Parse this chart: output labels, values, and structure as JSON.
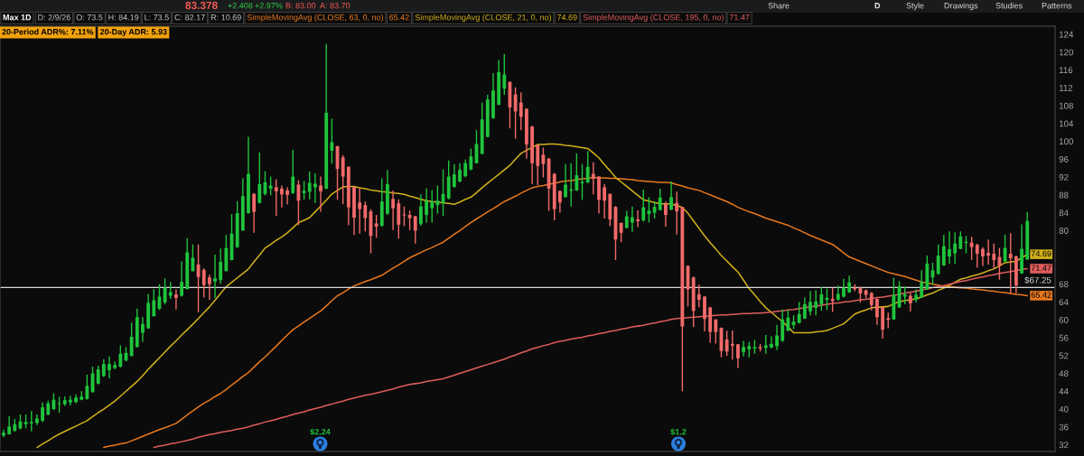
{
  "chart_data": {
    "type": "candlestick",
    "title": "Max 1D",
    "categories": [
      null,
      null,
      null,
      null,
      null,
      null,
      null,
      null,
      null,
      null,
      null,
      null,
      null,
      null,
      null,
      null,
      null,
      null,
      null,
      null,
      null,
      null,
      null,
      null,
      null,
      null,
      null,
      null,
      null,
      null,
      null,
      null,
      null,
      null,
      null,
      null,
      null,
      null,
      null,
      null,
      null,
      null,
      null,
      null,
      null,
      null,
      null,
      null,
      null,
      null,
      null,
      null,
      null,
      null,
      null,
      null,
      null,
      null,
      null,
      null,
      null,
      null,
      null,
      null,
      null,
      null,
      null,
      null,
      null,
      null,
      null,
      null,
      null,
      null,
      null,
      null,
      null,
      null,
      null,
      null,
      null,
      null,
      null,
      null,
      null,
      null,
      null,
      null,
      null,
      null,
      null,
      null,
      null,
      null,
      null,
      null,
      null,
      null,
      null,
      null,
      null,
      null,
      null,
      null,
      null,
      null,
      null,
      null,
      null,
      null,
      null,
      null,
      null,
      null,
      null,
      null,
      null,
      null,
      null,
      null,
      null,
      null,
      null,
      null,
      null,
      null,
      null,
      null,
      null,
      null,
      null,
      null,
      null,
      null,
      null,
      null,
      null,
      null,
      null,
      null,
      null,
      null,
      null,
      null,
      null,
      null,
      null,
      null,
      null,
      null,
      null,
      null,
      null,
      null,
      null,
      null,
      null,
      null,
      null,
      null,
      null,
      null,
      null,
      null,
      null,
      null,
      null,
      null,
      null,
      null,
      null,
      null,
      null,
      null,
      null,
      null,
      null,
      null,
      null,
      null,
      null,
      null,
      null,
      null,
      null
    ],
    "ohlc": [
      [
        34.1,
        35.4,
        33.7,
        34.7
      ],
      [
        34.4,
        38.4,
        34.3,
        36.1
      ],
      [
        35.1,
        37.8,
        35.0,
        36.6
      ],
      [
        35.7,
        38.8,
        35.4,
        37.2
      ],
      [
        36.6,
        38.8,
        35.7,
        37.1
      ],
      [
        36.8,
        39.6,
        35.0,
        37.1
      ],
      [
        36.9,
        38.8,
        36.4,
        37.9
      ],
      [
        37.4,
        41.5,
        37.1,
        40.4
      ],
      [
        38.8,
        41.9,
        38.6,
        41.3
      ],
      [
        40.0,
        43.5,
        39.8,
        42.1
      ],
      [
        41.1,
        42.8,
        39.2,
        41.3
      ],
      [
        41.1,
        42.8,
        40.7,
        42.0
      ],
      [
        41.5,
        43.0,
        40.8,
        42.1
      ],
      [
        41.6,
        43.3,
        41.3,
        42.6
      ],
      [
        42.1,
        44.0,
        42.0,
        42.8
      ],
      [
        42.3,
        47.7,
        42.1,
        45.2
      ],
      [
        43.8,
        49.5,
        43.7,
        48.0
      ],
      [
        45.7,
        49.7,
        45.5,
        48.9
      ],
      [
        47.4,
        51.2,
        47.2,
        50.1
      ],
      [
        48.7,
        51.8,
        46.9,
        50.1
      ],
      [
        49.2,
        50.7,
        48.9,
        49.9
      ],
      [
        49.5,
        54.3,
        49.3,
        52.4
      ],
      [
        50.9,
        53.9,
        50.7,
        52.6
      ],
      [
        51.9,
        59.4,
        51.8,
        56.2
      ],
      [
        53.9,
        62.5,
        53.8,
        60.6
      ],
      [
        57.1,
        60.6,
        55.1,
        59.1
      ],
      [
        58.1,
        65.8,
        58.0,
        63.8
      ],
      [
        60.8,
        66.9,
        60.8,
        64.4
      ],
      [
        62.5,
        68.0,
        62.2,
        65.2
      ],
      [
        63.9,
        69.3,
        63.5,
        67.2
      ],
      [
        65.4,
        68.5,
        64.7,
        66.2
      ],
      [
        65.7,
        66.8,
        62.3,
        64.9
      ],
      [
        65.4,
        73.1,
        65.2,
        68.5
      ],
      [
        66.9,
        78.3,
        66.8,
        75.1
      ],
      [
        70.9,
        76.9,
        70.9,
        73.9
      ],
      [
        72.4,
        76.9,
        61.7,
        69.6
      ],
      [
        71.2,
        71.5,
        65.0,
        67.8
      ],
      [
        69.5,
        70.1,
        64.5,
        68.0
      ],
      [
        68.6,
        74.6,
        64.9,
        69.3
      ],
      [
        68.9,
        76.0,
        68.1,
        73.0
      ],
      [
        70.9,
        79.0,
        70.9,
        76.1
      ],
      [
        73.4,
        83.7,
        73.3,
        79.3
      ],
      [
        76.3,
        86.6,
        76.1,
        83.9
      ],
      [
        80.0,
        91.7,
        80.0,
        87.7
      ],
      [
        83.9,
        101.0,
        83.8,
        92.7
      ],
      [
        88.2,
        88.4,
        79.5,
        84.2
      ],
      [
        86.2,
        97.5,
        86.1,
        90.4
      ],
      [
        88.2,
        93.3,
        87.9,
        90.8
      ],
      [
        89.4,
        92.1,
        87.9,
        90.1
      ],
      [
        89.7,
        91.5,
        83.3,
        88.8
      ],
      [
        89.4,
        90.1,
        85.2,
        88.1
      ],
      [
        89.0,
        89.7,
        85.9,
        88.0
      ],
      [
        88.4,
        98.1,
        88.2,
        92.1
      ],
      [
        90.3,
        91.3,
        81.2,
        86.7
      ],
      [
        88.4,
        91.1,
        86.9,
        88.9
      ],
      [
        88.7,
        93.2,
        87.0,
        90.7
      ],
      [
        89.7,
        92.8,
        86.2,
        90.5
      ],
      [
        90.1,
        92.1,
        84.2,
        88.8
      ],
      [
        89.4,
        121.8,
        89.3,
        106.4
      ],
      [
        97.9,
        105.1,
        95.0,
        99.8
      ],
      [
        98.9,
        99.0,
        86.9,
        93.8
      ],
      [
        96.4,
        96.9,
        85.9,
        92.1
      ],
      [
        94.3,
        94.4,
        81.2,
        85.2
      ],
      [
        89.8,
        89.9,
        79.0,
        82.9
      ],
      [
        86.3,
        89.6,
        79.3,
        84.8
      ],
      [
        85.7,
        86.5,
        79.8,
        82.8
      ],
      [
        84.3,
        84.8,
        74.9,
        78.8
      ],
      [
        81.6,
        83.5,
        78.4,
        80.9
      ],
      [
        81.1,
        91.7,
        80.9,
        86.5
      ],
      [
        83.8,
        93.6,
        83.5,
        90.4
      ],
      [
        87.1,
        89.0,
        80.1,
        85.0
      ],
      [
        86.1,
        87.0,
        78.2,
        81.3
      ],
      [
        83.6,
        85.4,
        81.0,
        83.4
      ],
      [
        83.5,
        84.5,
        80.1,
        82.8
      ],
      [
        83.2,
        83.3,
        77.1,
        80.0
      ],
      [
        81.5,
        88.1,
        81.1,
        85.4
      ],
      [
        83.5,
        89.5,
        81.8,
        86.7
      ],
      [
        85.0,
        89.1,
        81.8,
        86.5
      ],
      [
        85.7,
        90.1,
        83.8,
        86.7
      ],
      [
        86.2,
        93.7,
        83.3,
        88.2
      ],
      [
        87.2,
        95.7,
        87.0,
        92.1
      ],
      [
        89.8,
        94.9,
        89.6,
        92.6
      ],
      [
        91.0,
        95.1,
        90.8,
        93.6
      ],
      [
        92.2,
        95.9,
        91.9,
        95.1
      ],
      [
        93.7,
        98.4,
        93.5,
        96.6
      ],
      [
        95.1,
        102.5,
        95.1,
        99.4
      ],
      [
        97.2,
        108.7,
        97.1,
        104.9
      ],
      [
        101.0,
        110.4,
        100.9,
        109.4
      ],
      [
        105.2,
        115.3,
        105.0,
        111.4
      ],
      [
        108.2,
        118.2,
        108.1,
        115.5
      ],
      [
        111.8,
        119.6,
        110.4,
        115.0
      ],
      [
        113.3,
        113.4,
        102.9,
        107.6
      ],
      [
        110.5,
        112.1,
        100.6,
        106.7
      ],
      [
        108.7,
        111.0,
        102.5,
        105.5
      ],
      [
        107.3,
        107.4,
        96.1,
        99.3
      ],
      [
        103.3,
        103.5,
        90.4,
        95.1
      ],
      [
        99.2,
        99.3,
        90.2,
        94.5
      ],
      [
        97.0,
        98.6,
        91.9,
        94.9
      ],
      [
        96.1,
        96.3,
        84.4,
        89.4
      ],
      [
        92.7,
        92.9,
        82.3,
        84.8
      ],
      [
        88.9,
        89.0,
        84.0,
        86.3
      ],
      [
        87.5,
        94.9,
        87.4,
        90.3
      ],
      [
        88.9,
        95.1,
        85.4,
        89.2
      ],
      [
        89.0,
        97.3,
        88.9,
        92.4
      ],
      [
        90.6,
        94.9,
        86.9,
        90.9
      ],
      [
        90.8,
        97.8,
        90.6,
        94.3
      ],
      [
        92.7,
        95.3,
        88.1,
        91.6
      ],
      [
        92.1,
        92.2,
        83.8,
        86.9
      ],
      [
        89.7,
        90.4,
        82.7,
        86.7
      ],
      [
        88.2,
        88.3,
        81.0,
        82.5
      ],
      [
        85.3,
        85.5,
        73.4,
        78.0
      ],
      [
        81.7,
        81.8,
        77.4,
        79.5
      ],
      [
        80.6,
        84.4,
        80.5,
        83.2
      ],
      [
        81.8,
        85.4,
        79.7,
        83.0
      ],
      [
        82.5,
        84.5,
        80.8,
        82.1
      ],
      [
        82.3,
        89.2,
        82.0,
        85.2
      ],
      [
        83.7,
        87.5,
        81.8,
        84.5
      ],
      [
        84.0,
        86.5,
        82.7,
        85.3
      ],
      [
        84.6,
        89.4,
        84.5,
        87.4
      ],
      [
        86.0,
        86.5,
        80.9,
        83.5
      ],
      [
        84.7,
        91.0,
        84.5,
        87.5
      ],
      [
        86.2,
        88.7,
        79.1,
        84.3
      ],
      [
        85.3,
        85.3,
        44.0,
        58.5
      ],
      [
        72.1,
        72.2,
        63.0,
        66.8
      ],
      [
        69.5,
        69.7,
        58.4,
        62.0
      ],
      [
        65.7,
        67.9,
        62.8,
        64.5
      ],
      [
        65.2,
        65.3,
        57.4,
        60.2
      ],
      [
        62.8,
        62.8,
        54.9,
        57.3
      ],
      [
        60.1,
        60.1,
        54.7,
        57.3
      ],
      [
        58.2,
        58.3,
        51.6,
        53.0
      ],
      [
        55.6,
        57.6,
        51.9,
        52.9
      ],
      [
        54.6,
        57.6,
        51.1,
        54.2
      ],
      [
        54.5,
        54.6,
        49.2,
        51.4
      ],
      [
        52.8,
        55.3,
        51.8,
        53.9
      ],
      [
        53.4,
        55.1,
        51.6,
        54.1
      ],
      [
        53.6,
        55.5,
        52.4,
        53.9
      ],
      [
        53.9,
        54.6,
        52.9,
        53.6
      ],
      [
        53.7,
        56.6,
        52.4,
        54.3
      ],
      [
        53.8,
        56.3,
        53.6,
        54.6
      ],
      [
        54.1,
        58.9,
        53.2,
        56.5
      ],
      [
        55.3,
        62.3,
        55.1,
        60.1
      ],
      [
        57.6,
        62.3,
        57.4,
        60.5
      ],
      [
        58.8,
        61.0,
        57.9,
        59.6
      ],
      [
        59.3,
        64.0,
        59.2,
        61.3
      ],
      [
        60.3,
        65.0,
        60.2,
        63.5
      ],
      [
        61.9,
        66.4,
        61.0,
        64.0
      ],
      [
        62.7,
        66.6,
        61.0,
        64.1
      ],
      [
        63.5,
        67.4,
        62.1,
        65.7
      ],
      [
        64.5,
        67.0,
        62.2,
        64.9
      ],
      [
        64.7,
        67.2,
        61.8,
        64.2
      ],
      [
        64.5,
        67.7,
        64.3,
        65.8
      ],
      [
        65.2,
        69.2,
        65.0,
        67.2
      ],
      [
        66.2,
        69.9,
        66.0,
        68.4
      ],
      [
        67.2,
        68.0,
        66.4,
        66.9
      ],
      [
        67.2,
        67.4,
        63.9,
        65.9
      ],
      [
        66.6,
        66.8,
        64.8,
        65.6
      ],
      [
        66.0,
        66.2,
        62.1,
        63.3
      ],
      [
        64.7,
        64.8,
        58.9,
        60.6
      ],
      [
        62.8,
        62.9,
        55.8,
        57.8
      ],
      [
        60.4,
        61.6,
        58.1,
        60.0
      ],
      [
        60.1,
        69.4,
        60.0,
        65.6
      ],
      [
        62.8,
        68.7,
        62.7,
        67.5
      ],
      [
        65.2,
        67.5,
        63.5,
        65.7
      ],
      [
        65.4,
        66.0,
        61.9,
        63.7
      ],
      [
        64.5,
        66.8,
        63.9,
        65.6
      ],
      [
        65.0,
        71.1,
        64.9,
        68.5
      ],
      [
        66.8,
        74.4,
        66.7,
        72.6
      ],
      [
        69.5,
        72.8,
        67.9,
        71.1
      ],
      [
        70.3,
        76.9,
        70.1,
        74.4
      ],
      [
        72.2,
        79.0,
        72.1,
        76.5
      ],
      [
        74.2,
        79.8,
        72.6,
        75.8
      ],
      [
        74.9,
        79.6,
        72.6,
        77.1
      ],
      [
        75.9,
        79.8,
        75.8,
        78.7
      ],
      [
        77.2,
        78.8,
        74.9,
        77.5
      ],
      [
        77.3,
        78.6,
        73.4,
        76.3
      ],
      [
        76.8,
        77.1,
        71.7,
        74.8
      ],
      [
        75.9,
        76.3,
        72.1,
        74.2
      ],
      [
        75.0,
        78.0,
        72.4,
        74.4
      ],
      [
        74.8,
        77.1,
        71.4,
        73.4
      ],
      [
        74.1,
        76.1,
        69.0,
        72.1
      ],
      [
        73.1,
        79.1,
        72.9,
        76.1
      ],
      [
        74.8,
        79.4,
        65.9,
        73.8
      ],
      [
        74.2,
        74.4,
        65.9,
        67.7
      ],
      [
        70.4,
        81.4,
        70.3,
        75.9
      ],
      [
        73.5,
        84.19,
        73.5,
        82.17
      ]
    ],
    "colors": [
      "#1fc43c",
      "#1fc43c",
      "#1fc43c",
      "#1fc43c",
      "#1fc43c",
      "#1fc43c",
      "#1fc43c",
      "#1fc43c",
      "#1fc43c",
      "#1fc43c",
      "#1fc43c",
      "#1fc43c",
      "#1fc43c",
      "#1fc43c",
      "#1fc43c",
      "#1fc43c",
      "#1fc43c",
      "#1fc43c",
      "#1fc43c",
      "#1fc43c",
      "#1fc43c",
      "#1fc43c",
      "#1fc43c",
      "#1fc43c",
      "#1fc43c",
      "#1fc43c",
      "#1fc43c",
      "#1fc43c",
      "#1fc43c",
      "#1fc43c",
      "#1fc43c",
      "#f26a6a",
      "#1fc43c",
      "#1fc43c",
      "#1fc43c",
      "#f26a6a",
      "#f26a6a",
      "#f26a6a",
      "#1fc43c",
      "#1fc43c",
      "#1fc43c",
      "#1fc43c",
      "#1fc43c",
      "#1fc43c",
      "#1fc43c",
      "#f26a6a",
      "#1fc43c",
      "#1fc43c",
      "#1fc43c",
      "#f26a6a",
      "#f26a6a",
      "#f26a6a",
      "#1fc43c",
      "#f26a6a",
      "#1fc43c",
      "#1fc43c",
      "#1fc43c",
      "#f26a6a",
      "#1fc43c",
      "#1fc43c",
      "#f26a6a",
      "#f26a6a",
      "#f26a6a",
      "#f26a6a",
      "#f26a6a",
      "#f26a6a",
      "#f26a6a",
      "#f26a6a",
      "#1fc43c",
      "#1fc43c",
      "#f26a6a",
      "#f26a6a",
      "#f26a6a",
      "#f26a6a",
      "#f26a6a",
      "#1fc43c",
      "#1fc43c",
      "#1fc43c",
      "#1fc43c",
      "#1fc43c",
      "#1fc43c",
      "#1fc43c",
      "#1fc43c",
      "#1fc43c",
      "#1fc43c",
      "#1fc43c",
      "#1fc43c",
      "#1fc43c",
      "#1fc43c",
      "#1fc43c",
      "#1fc43c",
      "#f26a6a",
      "#f26a6a",
      "#f26a6a",
      "#f26a6a",
      "#f26a6a",
      "#f26a6a",
      "#f26a6a",
      "#f26a6a",
      "#f26a6a",
      "#f26a6a",
      "#1fc43c",
      "#1fc43c",
      "#1fc43c",
      "#1fc43c",
      "#1fc43c",
      "#f26a6a",
      "#f26a6a",
      "#f26a6a",
      "#f26a6a",
      "#f26a6a",
      "#f26a6a",
      "#1fc43c",
      "#1fc43c",
      "#f26a6a",
      "#1fc43c",
      "#1fc43c",
      "#1fc43c",
      "#1fc43c",
      "#f26a6a",
      "#1fc43c",
      "#f26a6a",
      "#f26a6a",
      "#f26a6a",
      "#f26a6a",
      "#f26a6a",
      "#f26a6a",
      "#f26a6a",
      "#f26a6a",
      "#f26a6a",
      "#f26a6a",
      "#f26a6a",
      "#f26a6a",
      "#1fc43c",
      "#1fc43c",
      "#1fc43c",
      "#f26a6a",
      "#1fc43c",
      "#1fc43c",
      "#1fc43c",
      "#1fc43c",
      "#1fc43c",
      "#1fc43c",
      "#1fc43c",
      "#1fc43c",
      "#1fc43c",
      "#1fc43c",
      "#1fc43c",
      "#1fc43c",
      "#f26a6a",
      "#1fc43c",
      "#1fc43c",
      "#1fc43c",
      "#f26a6a",
      "#f26a6a",
      "#f26a6a",
      "#f26a6a",
      "#f26a6a",
      "#f26a6a",
      "#f26a6a",
      "#1fc43c",
      "#1fc43c",
      "#1fc43c",
      "#f26a6a",
      "#1fc43c",
      "#1fc43c",
      "#1fc43c",
      "#1fc43c",
      "#1fc43c",
      "#1fc43c",
      "#1fc43c",
      "#1fc43c",
      "#1fc43c",
      "#1fc43c",
      "#f26a6a",
      "#f26a6a",
      "#f26a6a",
      "#f26a6a",
      "#f26a6a",
      "#f26a6a",
      "#1fc43c",
      "#f26a6a",
      "#f26a6a",
      "#1fc43c",
      "#1fc43c"
    ],
    "series": [
      {
        "name": "SimpleMovingAvg (CLOSE, 63, 0, no)",
        "type": "line",
        "color": "#e8781e",
        "values": [
          null,
          null,
          null,
          null,
          null,
          null,
          null,
          null,
          null,
          null,
          null,
          null,
          null,
          null,
          null,
          null,
          null,
          null,
          31.4,
          31.7,
          31.9,
          32.2,
          32.4,
          32.9,
          33.4,
          33.9,
          34.4,
          34.9,
          35.4,
          35.8,
          36.3,
          36.8,
          37.7,
          38.7,
          39.6,
          40.5,
          41.3,
          42.0,
          42.8,
          43.5,
          44.4,
          45.4,
          46.3,
          47.3,
          48.2,
          49.4,
          50.6,
          51.7,
          52.9,
          54.1,
          55.4,
          56.6,
          57.8,
          58.6,
          59.5,
          60.3,
          61.2,
          62.0,
          63.1,
          64.3,
          65.4,
          66.1,
          66.9,
          67.6,
          68.1,
          68.6,
          69.0,
          69.5,
          70.0,
          70.8,
          71.6,
          72.3,
          73.1,
          73.9,
          74.5,
          75.1,
          75.7,
          76.2,
          76.8,
          77.4,
          78.3,
          79.2,
          80.0,
          80.9,
          81.8,
          82.6,
          83.4,
          84.2,
          84.9,
          85.7,
          86.5,
          87.1,
          87.7,
          88.4,
          89.0,
          89.6,
          89.9,
          90.1,
          90.4,
          90.6,
          90.9,
          91.1,
          91.2,
          91.4,
          91.6,
          91.7,
          91.9,
          91.8,
          91.8,
          91.7,
          91.7,
          91.6,
          91.5,
          91.4,
          91.2,
          91.1,
          91.0,
          90.9,
          90.8,
          90.8,
          90.7,
          90.3,
          90.0,
          89.6,
          89.3,
          89.0,
          88.5,
          88.0,
          87.5,
          87.0,
          86.5,
          85.9,
          85.2,
          84.7,
          84.2,
          83.8,
          83.3,
          82.8,
          82.4,
          82.0,
          81.6,
          81.2,
          80.6,
          80.1,
          79.5,
          78.9,
          78.4,
          77.9,
          77.4,
          76.9,
          76.0,
          75.0,
          74.1,
          73.6,
          73.1,
          72.6,
          72.1,
          71.6,
          71.1,
          70.6,
          70.3,
          70.0,
          69.7,
          69.3,
          68.9,
          68.5,
          68.3,
          68.0,
          67.8,
          67.5,
          67.4,
          67.3,
          67.2,
          67.1,
          66.9,
          66.8,
          66.7,
          66.5,
          66.4,
          66.2,
          66.1,
          65.9,
          65.7,
          65.6,
          65.42
        ],
        "value_labels": [
          null,
          null,
          null,
          null,
          null,
          null,
          null,
          null,
          null,
          null,
          null,
          null,
          null,
          null,
          null,
          null,
          null,
          null,
          null,
          null,
          null,
          null,
          null,
          null,
          null,
          null,
          null,
          null,
          null,
          null,
          null,
          null,
          null,
          null,
          null,
          null,
          null,
          null,
          null,
          null,
          null,
          null,
          null,
          null,
          null,
          null,
          null,
          null,
          null,
          null,
          null,
          null,
          null,
          null,
          null,
          null,
          null,
          null,
          null,
          null,
          null,
          null,
          null,
          null,
          null,
          null,
          null,
          null,
          null,
          null,
          null,
          null,
          null,
          null,
          null,
          null,
          null,
          null,
          null,
          null,
          null,
          null,
          null,
          null,
          null,
          null,
          null,
          null,
          null,
          null,
          null,
          null,
          null,
          null,
          null,
          null,
          null,
          null,
          null,
          null,
          null,
          null,
          null,
          null,
          null,
          null,
          null,
          null,
          null,
          null,
          null,
          null,
          null,
          null,
          null,
          null,
          null,
          null,
          null,
          null,
          null,
          null,
          null,
          null,
          null,
          null,
          null,
          null,
          null,
          null,
          null,
          null,
          null,
          null,
          null,
          null,
          null,
          null,
          null,
          null,
          null,
          null,
          null,
          null,
          null,
          null,
          null,
          null,
          null,
          null,
          null,
          null,
          null,
          null,
          null,
          null,
          null,
          null,
          null,
          null,
          null,
          null,
          null,
          null,
          null,
          null,
          null,
          null,
          null,
          null,
          null,
          null,
          null,
          null,
          null,
          null,
          null,
          null,
          null,
          null,
          null,
          null,
          null,
          null,
          "65.42"
        ]
      },
      {
        "name": "SimpleMovingAvg (CLOSE, 21, 0, no)",
        "type": "line",
        "color": "#d2b01a",
        "values": [
          null,
          null,
          null,
          null,
          null,
          null,
          31.4,
          32.2,
          32.9,
          33.7,
          34.4,
          35.0,
          35.6,
          36.2,
          36.8,
          37.4,
          38.3,
          39.2,
          40.0,
          40.9,
          41.8,
          42.9,
          44.0,
          45.1,
          46.2,
          47.5,
          48.9,
          50.2,
          51.5,
          52.8,
          54.1,
          55.3,
          56.6,
          57.8,
          59.0,
          60.3,
          61.6,
          62.9,
          64.4,
          65.9,
          67.4,
          68.4,
          69.4,
          70.4,
          71.4,
          73.0,
          74.5,
          76.1,
          76.9,
          77.8,
          78.6,
          79.5,
          80.6,
          81.8,
          82.3,
          82.9,
          84.2,
          85.5,
          86.8,
          88.2,
          89.0,
          89.8,
          89.9,
          89.9,
          89.6,
          89.4,
          89.1,
          88.9,
          88.7,
          88.6,
          88.4,
          88.3,
          88.1,
          87.7,
          87.4,
          87.0,
          86.7,
          86.5,
          86.4,
          86.2,
          86.1,
          85.9,
          86.4,
          87.0,
          87.5,
          88.5,
          89.6,
          90.6,
          91.6,
          92.6,
          93.6,
          94.6,
          96.0,
          97.3,
          98.0,
          98.6,
          99.3,
          99.3,
          99.4,
          99.4,
          99.3,
          99.1,
          99.0,
          98.8,
          98.6,
          98.4,
          97.4,
          96.3,
          94.8,
          93.4,
          91.9,
          90.9,
          89.9,
          88.9,
          87.9,
          86.9,
          86.6,
          86.3,
          86.0,
          86.0,
          86.0,
          85.6,
          85.2,
          83.9,
          82.2,
          80.5,
          78.8,
          77.3,
          75.9,
          74.4,
          73.2,
          71.9,
          70.7,
          68.9,
          67.0,
          65.6,
          64.1,
          62.7,
          61.7,
          60.6,
          59.6,
          58.4,
          57.1,
          57.1,
          57.1,
          57.1,
          57.3,
          57.4,
          57.6,
          58.1,
          58.6,
          59.1,
          60.2,
          61.3,
          61.8,
          62.2,
          62.7,
          62.8,
          62.9,
          63.0,
          63.6,
          64.1,
          64.3,
          64.5,
          64.7,
          65.1,
          65.6,
          66.0,
          66.6,
          67.1,
          67.7,
          68.4,
          69.1,
          69.4,
          69.8,
          70.1,
          70.5,
          71.0,
          71.4,
          72.1,
          72.8,
          73.0,
          73.1,
          73.9,
          74.69
        ],
        "value_labels": [
          null,
          null,
          null,
          null,
          null,
          null,
          null,
          null,
          null,
          null,
          null,
          null,
          null,
          null,
          null,
          null,
          null,
          null,
          null,
          null,
          null,
          null,
          null,
          null,
          null,
          null,
          null,
          null,
          null,
          null,
          null,
          null,
          null,
          null,
          null,
          null,
          null,
          null,
          null,
          null,
          null,
          null,
          null,
          null,
          null,
          null,
          null,
          null,
          null,
          null,
          null,
          null,
          null,
          null,
          null,
          null,
          null,
          null,
          null,
          null,
          null,
          null,
          null,
          null,
          null,
          null,
          null,
          null,
          null,
          null,
          null,
          null,
          null,
          null,
          null,
          null,
          null,
          null,
          null,
          null,
          null,
          null,
          null,
          null,
          null,
          null,
          null,
          null,
          null,
          null,
          null,
          null,
          null,
          null,
          null,
          null,
          null,
          null,
          null,
          null,
          null,
          null,
          null,
          null,
          null,
          null,
          null,
          null,
          null,
          null,
          null,
          null,
          null,
          null,
          null,
          null,
          null,
          null,
          null,
          null,
          null,
          null,
          null,
          null,
          null,
          null,
          null,
          null,
          null,
          null,
          null,
          null,
          null,
          null,
          null,
          null,
          null,
          null,
          null,
          null,
          null,
          null,
          null,
          null,
          null,
          null,
          null,
          null,
          null,
          null,
          null,
          null,
          null,
          null,
          null,
          null,
          null,
          null,
          null,
          null,
          null,
          null,
          null,
          null,
          null,
          null,
          null,
          null,
          null,
          null,
          null,
          null,
          null,
          null,
          null,
          null,
          null,
          null,
          null,
          null,
          null,
          null,
          null,
          null,
          "74.69"
        ]
      },
      {
        "name": "SimpleMovingAvg (CLOSE, 195, 0, no)",
        "type": "line",
        "color": "#e05c5c",
        "values": [
          null,
          null,
          null,
          null,
          null,
          null,
          null,
          null,
          null,
          null,
          null,
          null,
          null,
          null,
          null,
          null,
          null,
          null,
          null,
          null,
          null,
          null,
          null,
          null,
          null,
          null,
          null,
          31.4,
          31.7,
          31.9,
          32.2,
          32.4,
          32.7,
          33.0,
          33.3,
          33.7,
          34.0,
          34.3,
          34.5,
          34.8,
          35.0,
          35.2,
          35.5,
          35.7,
          36.0,
          36.4,
          36.7,
          37.1,
          37.4,
          37.7,
          38.1,
          38.4,
          38.8,
          39.1,
          39.4,
          39.8,
          40.1,
          40.4,
          40.8,
          41.1,
          41.5,
          41.8,
          42.2,
          42.5,
          42.8,
          43.1,
          43.3,
          43.6,
          43.9,
          44.2,
          44.5,
          44.9,
          45.2,
          45.5,
          45.7,
          45.9,
          46.2,
          46.4,
          46.6,
          46.8,
          47.2,
          47.6,
          48.0,
          48.4,
          48.8,
          49.2,
          49.6,
          50.0,
          50.4,
          50.8,
          51.2,
          51.7,
          52.1,
          52.6,
          53.0,
          53.5,
          53.8,
          54.2,
          54.5,
          54.9,
          55.2,
          55.4,
          55.7,
          55.9,
          56.1,
          56.4,
          56.6,
          56.9,
          57.1,
          57.4,
          57.6,
          57.9,
          58.1,
          58.4,
          58.6,
          58.8,
          59.1,
          59.3,
          59.6,
          59.8,
          60.1,
          60.3,
          60.4,
          60.5,
          60.6,
          60.7,
          60.8,
          60.9,
          61.0,
          61.1,
          61.1,
          61.2,
          61.3,
          61.4,
          61.4,
          61.5,
          61.5,
          61.6,
          61.7,
          61.9,
          62.0,
          62.2,
          62.3,
          62.5,
          62.7,
          62.9,
          63.1,
          63.3,
          63.5,
          63.7,
          63.8,
          64.0,
          64.1,
          64.3,
          64.5,
          64.6,
          64.8,
          65.0,
          65.1,
          65.3,
          65.5,
          65.7,
          66.0,
          66.2,
          66.4,
          66.7,
          66.9,
          67.2,
          67.5,
          67.7,
          68.0,
          68.3,
          68.6,
          68.8,
          69.1,
          69.4,
          69.6,
          69.9,
          70.1,
          70.4,
          70.6,
          70.8,
          71.0,
          71.3,
          71.47
        ],
        "value_labels": [
          null,
          null,
          null,
          null,
          null,
          null,
          null,
          null,
          null,
          null,
          null,
          null,
          null,
          null,
          null,
          null,
          null,
          null,
          null,
          null,
          null,
          null,
          null,
          null,
          null,
          null,
          null,
          null,
          null,
          null,
          null,
          null,
          null,
          null,
          null,
          null,
          null,
          null,
          null,
          null,
          null,
          null,
          null,
          null,
          null,
          null,
          null,
          null,
          null,
          null,
          null,
          null,
          null,
          null,
          null,
          null,
          null,
          null,
          null,
          null,
          null,
          null,
          null,
          null,
          null,
          null,
          null,
          null,
          null,
          null,
          null,
          null,
          null,
          null,
          null,
          null,
          null,
          null,
          null,
          null,
          null,
          null,
          null,
          null,
          null,
          null,
          null,
          null,
          null,
          null,
          null,
          null,
          null,
          null,
          null,
          null,
          null,
          null,
          null,
          null,
          null,
          null,
          null,
          null,
          null,
          null,
          null,
          null,
          null,
          null,
          null,
          null,
          null,
          null,
          null,
          null,
          null,
          null,
          null,
          null,
          null,
          null,
          null,
          null,
          null,
          null,
          null,
          null,
          null,
          null,
          null,
          null,
          null,
          null,
          null,
          null,
          null,
          null,
          null,
          null,
          null,
          null,
          null,
          null,
          null,
          null,
          null,
          null,
          null,
          null,
          null,
          null,
          null,
          null,
          null,
          null,
          null,
          null,
          null,
          null,
          null,
          null,
          null,
          null,
          null,
          null,
          null,
          null,
          null,
          null,
          null,
          null,
          null,
          null,
          null,
          null,
          null,
          null,
          null,
          null,
          null,
          null,
          null,
          null,
          "71.47"
        ]
      }
    ],
    "ylim": [
      30.5,
      125.8
    ],
    "yticks": [
      32,
      36,
      40,
      44,
      48,
      52,
      56,
      60,
      64,
      68,
      80,
      84,
      88,
      92,
      96,
      100,
      104,
      108,
      112,
      116,
      120,
      124
    ],
    "ref_lines": [
      {
        "axis": "y",
        "value": 67.25,
        "label": "$67.25",
        "color": "#d9d9d9"
      }
    ],
    "legend": "top",
    "annotations": [
      "83.378",
      "+2.408",
      "+2.97%",
      "B: 83.00",
      "A: 83.70",
      "Share",
      "D",
      "Style",
      "Drawings",
      "Studies",
      "Patterns",
      "D: 2/9/26",
      "O: 73.5",
      "H: 84.19",
      "L: 73.5",
      "C: 82.17",
      "R: 10.69",
      "20-Period ADR%: 7.11%",
      "20-Day ADR: 5.93",
      "$2.24",
      "$1.2"
    ]
  }
}
